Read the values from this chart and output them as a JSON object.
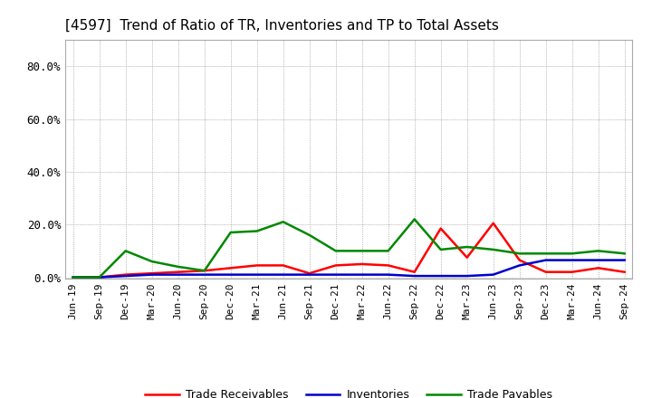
{
  "title": "[4597]  Trend of Ratio of TR, Inventories and TP to Total Assets",
  "x_labels": [
    "Jun-19",
    "Sep-19",
    "Dec-19",
    "Mar-20",
    "Jun-20",
    "Sep-20",
    "Dec-20",
    "Mar-21",
    "Jun-21",
    "Sep-21",
    "Dec-21",
    "Mar-22",
    "Jun-22",
    "Sep-22",
    "Dec-22",
    "Mar-23",
    "Jun-23",
    "Sep-23",
    "Dec-23",
    "Mar-24",
    "Jun-24",
    "Sep-24"
  ],
  "trade_receivables": [
    0.0,
    0.0,
    0.01,
    0.015,
    0.02,
    0.025,
    0.035,
    0.045,
    0.045,
    0.015,
    0.045,
    0.05,
    0.045,
    0.02,
    0.185,
    0.075,
    0.205,
    0.065,
    0.02,
    0.02,
    0.035,
    0.02
  ],
  "inventories": [
    0.0,
    0.0,
    0.005,
    0.01,
    0.01,
    0.01,
    0.01,
    0.01,
    0.01,
    0.01,
    0.01,
    0.01,
    0.01,
    0.005,
    0.005,
    0.005,
    0.01,
    0.045,
    0.065,
    0.065,
    0.065,
    0.065
  ],
  "trade_payables": [
    0.0,
    0.0,
    0.1,
    0.06,
    0.04,
    0.025,
    0.17,
    0.175,
    0.21,
    0.16,
    0.1,
    0.1,
    0.1,
    0.22,
    0.105,
    0.115,
    0.105,
    0.09,
    0.09,
    0.09,
    0.1,
    0.09
  ],
  "line_colors": {
    "trade_receivables": "#ff0000",
    "inventories": "#0000cc",
    "trade_payables": "#008800"
  },
  "legend_labels": [
    "Trade Receivables",
    "Inventories",
    "Trade Payables"
  ],
  "ylim_max": 0.9,
  "yticks": [
    0.0,
    0.2,
    0.4,
    0.6,
    0.8
  ],
  "ytick_labels": [
    "0.0%",
    "20.0%",
    "40.0%",
    "60.0%",
    "80.0%"
  ],
  "background_color": "#ffffff",
  "grid_color": "#999999",
  "title_fontsize": 11,
  "tick_fontsize": 8,
  "legend_fontsize": 9
}
